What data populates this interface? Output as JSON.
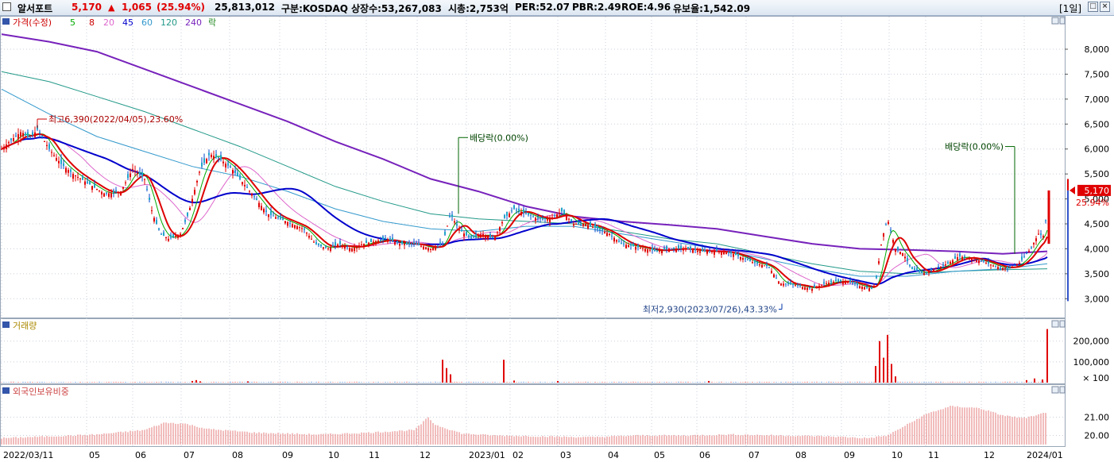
{
  "header": {
    "name": "알서포트",
    "price": "5,170",
    "change_arrow": "▲",
    "change": "1,065",
    "change_pct": "(25.94%)",
    "volume": "25,813,012",
    "market": "구분:KOSDAQ",
    "listed": "상장수:53,267,083",
    "mcap": "시총:2,753억",
    "per": "PER:52.07",
    "pbr": "PBR:2.49",
    "roe": "ROE:4.96",
    "float": "유보율:1,542.09",
    "period": "[1일]",
    "colors": {
      "up": "#e00000",
      "text": "#000000"
    }
  },
  "legend": {
    "price": "가격(수정)",
    "ma5": "5",
    "ma8": "8",
    "ma20": "20",
    "ma45": "45",
    "ma60": "60",
    "ma120": "120",
    "ma240": "240",
    "rak": "락"
  },
  "volume_panel": {
    "title": "거래량"
  },
  "foreign_panel": {
    "title": "외국인보유비중"
  },
  "chart_data": [
    {
      "type": "candlestick",
      "title": "가격(수정)",
      "yticks": [
        3000,
        3500,
        4000,
        4500,
        5000,
        5500,
        6000,
        6500,
        7000,
        7500,
        8000
      ],
      "ytick_labels": [
        "3,000",
        "3,500",
        "4,000",
        "4,500",
        "5,000",
        "5,500",
        "6,000",
        "6,500",
        "7,000",
        "7,500",
        "8,000"
      ],
      "last_price": 5170,
      "last_price_label": "5,170",
      "last_change_label": "25.94%",
      "ylim": [
        2750,
        8350
      ],
      "xtick_labels": [
        "2022/03/11",
        "05",
        "06",
        "07",
        "08",
        "09",
        "10",
        "11",
        "12",
        "2023/01",
        "02",
        "03",
        "04",
        "05",
        "06",
        "07",
        "08",
        "09",
        "10",
        "11",
        "12",
        "2024/01"
      ],
      "close_path": [
        [
          0,
          6000
        ],
        [
          10,
          6150
        ],
        [
          25,
          6350
        ],
        [
          35,
          6200
        ],
        [
          45,
          6390
        ],
        [
          60,
          6000
        ],
        [
          75,
          5700
        ],
        [
          90,
          5500
        ],
        [
          110,
          5300
        ],
        [
          130,
          5100
        ],
        [
          150,
          5150
        ],
        [
          165,
          5600
        ],
        [
          180,
          5400
        ],
        [
          190,
          4700
        ],
        [
          200,
          4300
        ],
        [
          210,
          4200
        ],
        [
          225,
          4300
        ],
        [
          235,
          4700
        ],
        [
          250,
          5600
        ],
        [
          262,
          5900
        ],
        [
          275,
          5800
        ],
        [
          290,
          5600
        ],
        [
          305,
          5300
        ],
        [
          320,
          5000
        ],
        [
          335,
          4700
        ],
        [
          350,
          4600
        ],
        [
          365,
          4500
        ],
        [
          380,
          4400
        ],
        [
          395,
          4100
        ],
        [
          410,
          4000
        ],
        [
          425,
          4100
        ],
        [
          440,
          4000
        ],
        [
          455,
          4100
        ],
        [
          470,
          4150
        ],
        [
          485,
          4200
        ],
        [
          500,
          4100
        ],
        [
          520,
          4100
        ],
        [
          540,
          4000
        ],
        [
          555,
          4100
        ],
        [
          565,
          4700
        ],
        [
          575,
          4400
        ],
        [
          590,
          4200
        ],
        [
          605,
          4300
        ],
        [
          620,
          4200
        ],
        [
          632,
          4600
        ],
        [
          645,
          4800
        ],
        [
          660,
          4700
        ],
        [
          675,
          4600
        ],
        [
          690,
          4600
        ],
        [
          705,
          4750
        ],
        [
          720,
          4500
        ],
        [
          735,
          4500
        ],
        [
          750,
          4400
        ],
        [
          765,
          4300
        ],
        [
          780,
          4100
        ],
        [
          795,
          4050
        ],
        [
          810,
          4000
        ],
        [
          825,
          3950
        ],
        [
          840,
          4000
        ],
        [
          860,
          4000
        ],
        [
          880,
          3950
        ],
        [
          900,
          3950
        ],
        [
          920,
          3900
        ],
        [
          935,
          3800
        ],
        [
          950,
          3700
        ],
        [
          965,
          3650
        ],
        [
          980,
          3300
        ],
        [
          990,
          3300
        ],
        [
          1005,
          3250
        ],
        [
          1020,
          3200
        ],
        [
          1035,
          3300
        ],
        [
          1050,
          3350
        ],
        [
          1065,
          3350
        ],
        [
          1080,
          3250
        ],
        [
          1095,
          3200
        ],
        [
          1100,
          3300
        ],
        [
          1108,
          4200
        ],
        [
          1115,
          4600
        ],
        [
          1125,
          4000
        ],
        [
          1135,
          3900
        ],
        [
          1145,
          3600
        ],
        [
          1160,
          3500
        ],
        [
          1175,
          3600
        ],
        [
          1190,
          3700
        ],
        [
          1205,
          3850
        ],
        [
          1220,
          3800
        ],
        [
          1235,
          3750
        ],
        [
          1250,
          3650
        ],
        [
          1265,
          3600
        ],
        [
          1280,
          3700
        ],
        [
          1295,
          4000
        ],
        [
          1305,
          4300
        ],
        [
          1312,
          4250
        ],
        [
          1318,
          5170
        ]
      ],
      "ma_lines": {
        "ma240": [
          [
            0,
            8300
          ],
          [
            60,
            8150
          ],
          [
            120,
            7950
          ],
          [
            180,
            7600
          ],
          [
            240,
            7250
          ],
          [
            300,
            6900
          ],
          [
            360,
            6550
          ],
          [
            420,
            6150
          ],
          [
            480,
            5800
          ],
          [
            540,
            5400
          ],
          [
            600,
            5150
          ],
          [
            660,
            4850
          ],
          [
            720,
            4650
          ],
          [
            780,
            4550
          ],
          [
            840,
            4480
          ],
          [
            900,
            4400
          ],
          [
            960,
            4250
          ],
          [
            1020,
            4100
          ],
          [
            1080,
            4000
          ],
          [
            1140,
            3980
          ],
          [
            1200,
            3950
          ],
          [
            1260,
            3900
          ],
          [
            1316,
            3950
          ]
        ],
        "ma120": [
          [
            0,
            7550
          ],
          [
            60,
            7350
          ],
          [
            120,
            7050
          ],
          [
            180,
            6750
          ],
          [
            240,
            6400
          ],
          [
            300,
            6050
          ],
          [
            360,
            5650
          ],
          [
            420,
            5250
          ],
          [
            480,
            4950
          ],
          [
            540,
            4700
          ],
          [
            600,
            4600
          ],
          [
            660,
            4550
          ],
          [
            720,
            4500
          ],
          [
            780,
            4350
          ],
          [
            840,
            4200
          ],
          [
            900,
            4100
          ],
          [
            960,
            3900
          ],
          [
            1020,
            3700
          ],
          [
            1080,
            3550
          ],
          [
            1140,
            3500
          ],
          [
            1200,
            3550
          ],
          [
            1260,
            3580
          ],
          [
            1316,
            3600
          ]
        ],
        "ma60": [
          [
            0,
            7200
          ],
          [
            60,
            6700
          ],
          [
            120,
            6250
          ],
          [
            180,
            5950
          ],
          [
            240,
            5650
          ],
          [
            300,
            5450
          ],
          [
            360,
            5150
          ],
          [
            420,
            4800
          ],
          [
            480,
            4550
          ],
          [
            540,
            4400
          ],
          [
            600,
            4350
          ],
          [
            660,
            4450
          ],
          [
            720,
            4450
          ],
          [
            780,
            4300
          ],
          [
            840,
            4150
          ],
          [
            900,
            4000
          ],
          [
            960,
            3800
          ],
          [
            1020,
            3600
          ],
          [
            1080,
            3450
          ],
          [
            1140,
            3450
          ],
          [
            1200,
            3550
          ],
          [
            1260,
            3600
          ],
          [
            1316,
            3700
          ]
        ]
      },
      "annotations": [
        {
          "text": "최고6,390(2022/04/05),23.60%",
          "x": 45,
          "y": 6390
        },
        {
          "text": "배당락(0.00%)",
          "x": 575,
          "y": 4700
        },
        {
          "text": "배당락(0.00%)",
          "x": 1275,
          "y": 3900
        },
        {
          "text": "최저2,930(2023/07/26),43.33%",
          "x": 982,
          "y": 2930
        }
      ]
    },
    {
      "type": "bar",
      "title": "거래량",
      "yticks": [
        100000,
        200000
      ],
      "ytick_labels": [
        "100,000",
        "200,000"
      ],
      "unit_label": "× 100",
      "ylim": [
        0,
        260000
      ],
      "spikes": [
        [
          240,
          8000
        ],
        [
          245,
          12000
        ],
        [
          250,
          6000
        ],
        [
          310,
          6000
        ],
        [
          555,
          110000
        ],
        [
          560,
          70000
        ],
        [
          565,
          40000
        ],
        [
          632,
          110000
        ],
        [
          645,
          10000
        ],
        [
          700,
          8000
        ],
        [
          890,
          8000
        ],
        [
          1100,
          80000
        ],
        [
          1105,
          200000
        ],
        [
          1110,
          120000
        ],
        [
          1115,
          230000
        ],
        [
          1120,
          90000
        ],
        [
          1125,
          30000
        ],
        [
          1290,
          12000
        ],
        [
          1300,
          20000
        ],
        [
          1310,
          15000
        ],
        [
          1316,
          258000
        ]
      ]
    },
    {
      "type": "bar",
      "title": "외국인보유비중",
      "yticks": [
        20.0,
        21.0
      ],
      "ytick_labels": [
        "20.00",
        "21.00"
      ],
      "ylim": [
        19.5,
        22.2
      ],
      "profile": [
        [
          0,
          19.85
        ],
        [
          60,
          19.95
        ],
        [
          120,
          20.05
        ],
        [
          180,
          20.3
        ],
        [
          205,
          20.7
        ],
        [
          230,
          20.65
        ],
        [
          260,
          20.35
        ],
        [
          320,
          20.15
        ],
        [
          400,
          20.05
        ],
        [
          460,
          20.15
        ],
        [
          520,
          20.3
        ],
        [
          537,
          21.0
        ],
        [
          545,
          20.6
        ],
        [
          580,
          20.1
        ],
        [
          620,
          20.0
        ],
        [
          680,
          19.95
        ],
        [
          740,
          19.9
        ],
        [
          800,
          20.0
        ],
        [
          860,
          20.0
        ],
        [
          920,
          20.05
        ],
        [
          980,
          20.0
        ],
        [
          1040,
          19.95
        ],
        [
          1090,
          19.85
        ],
        [
          1115,
          20.0
        ],
        [
          1140,
          20.6
        ],
        [
          1165,
          21.2
        ],
        [
          1195,
          21.6
        ],
        [
          1230,
          21.5
        ],
        [
          1260,
          21.1
        ],
        [
          1285,
          20.95
        ],
        [
          1300,
          21.05
        ],
        [
          1316,
          21.3
        ]
      ]
    }
  ]
}
